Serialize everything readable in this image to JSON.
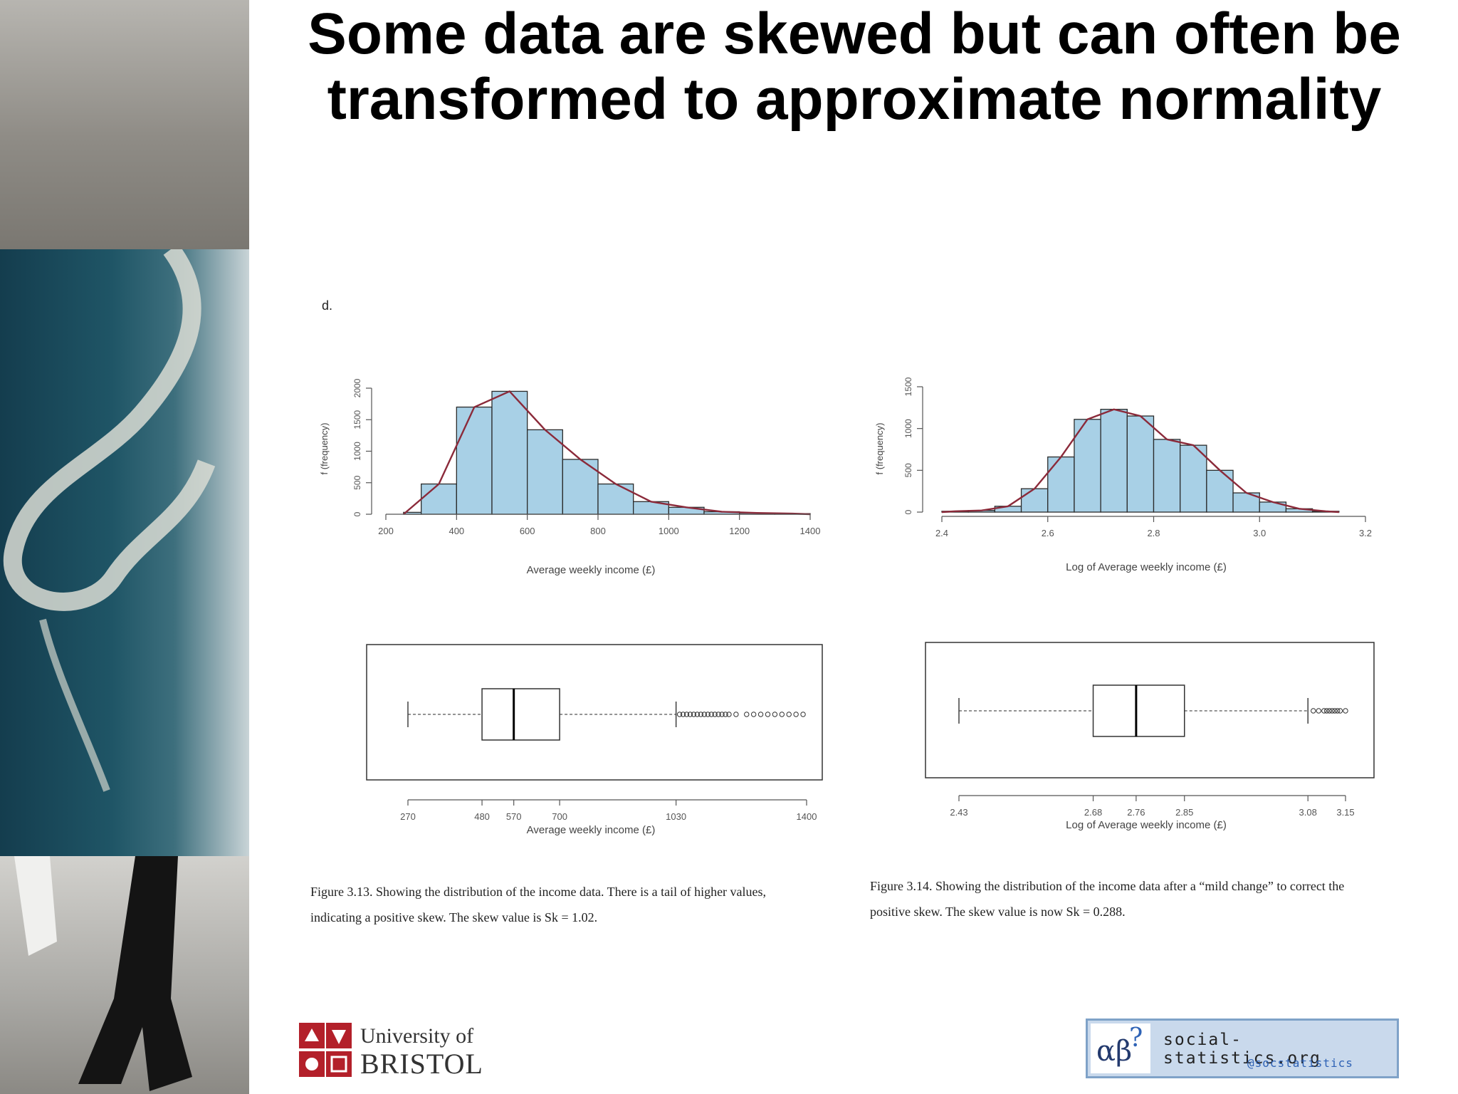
{
  "slide": {
    "title": "Some data are skewed but can often be transformed to approximate normality",
    "panel_label": "d."
  },
  "captions": {
    "fig313": "Figure 3.13. Showing the distribution of the income data. There is a tail of higher values, indicating a positive skew. The skew value is Sk = 1.02.",
    "fig314": "Figure 3.14. Showing the distribution of the income data after a “mild change” to correct the positive skew. The skew value is now Sk = 0.288."
  },
  "logos": {
    "bristol_line1": "University of",
    "bristol_line2": "BRISTOL",
    "ss_glyph": "αβ",
    "ss_question": "?",
    "ss_site": "social-statistics.org",
    "ss_handle": "@socstatistics"
  },
  "colors": {
    "bar_fill": "#a8d0e6",
    "bar_stroke": "#2b2b2b",
    "curve": "#8b2a3a",
    "box_stroke": "#333333"
  },
  "chart_data": [
    {
      "type": "bar",
      "xlabel": "Average weekly income (£)",
      "ylabel": "f (frequency)",
      "xlim": [
        200,
        1400
      ],
      "ylim": [
        0,
        2000
      ],
      "xticks": [
        "200",
        "400",
        "600",
        "800",
        "1000",
        "1200",
        "1400"
      ],
      "yticks": [
        "0",
        "500",
        "1000",
        "1500",
        "2000"
      ],
      "bins": [
        [
          250,
          300
        ],
        [
          300,
          400
        ],
        [
          400,
          500
        ],
        [
          500,
          600
        ],
        [
          600,
          700
        ],
        [
          700,
          800
        ],
        [
          800,
          900
        ],
        [
          900,
          1000
        ],
        [
          1000,
          1100
        ],
        [
          1100,
          1200
        ],
        [
          1200,
          1300
        ],
        [
          1300,
          1400
        ]
      ],
      "values": [
        30,
        480,
        1700,
        1950,
        1340,
        870,
        480,
        200,
        110,
        40,
        20,
        10
      ],
      "curve": [
        [
          250,
          0
        ],
        [
          350,
          480
        ],
        [
          450,
          1700
        ],
        [
          550,
          1950
        ],
        [
          650,
          1340
        ],
        [
          750,
          870
        ],
        [
          850,
          480
        ],
        [
          950,
          200
        ],
        [
          1050,
          110
        ],
        [
          1150,
          40
        ],
        [
          1250,
          20
        ],
        [
          1350,
          10
        ],
        [
          1400,
          0
        ]
      ]
    },
    {
      "type": "bar",
      "xlabel": "Log of Average weekly income (£)",
      "ylabel": "f (frequency)",
      "xlim": [
        2.4,
        3.2
      ],
      "ylim": [
        0,
        1500
      ],
      "xticks": [
        "2.4",
        "2.6",
        "2.8",
        "3.0",
        "3.2"
      ],
      "yticks": [
        "0",
        "500",
        "1000",
        "1500"
      ],
      "bins": [
        [
          2.4,
          2.45
        ],
        [
          2.45,
          2.5
        ],
        [
          2.5,
          2.55
        ],
        [
          2.55,
          2.6
        ],
        [
          2.6,
          2.65
        ],
        [
          2.65,
          2.7
        ],
        [
          2.7,
          2.75
        ],
        [
          2.75,
          2.8
        ],
        [
          2.8,
          2.85
        ],
        [
          2.85,
          2.9
        ],
        [
          2.9,
          2.95
        ],
        [
          2.95,
          3.0
        ],
        [
          3.0,
          3.05
        ],
        [
          3.05,
          3.1
        ],
        [
          3.1,
          3.15
        ]
      ],
      "values": [
        10,
        20,
        70,
        280,
        660,
        1110,
        1230,
        1150,
        870,
        800,
        500,
        230,
        120,
        40,
        10
      ],
      "curve": [
        [
          2.4,
          0
        ],
        [
          2.425,
          10
        ],
        [
          2.475,
          20
        ],
        [
          2.525,
          70
        ],
        [
          2.575,
          280
        ],
        [
          2.625,
          660
        ],
        [
          2.675,
          1110
        ],
        [
          2.725,
          1230
        ],
        [
          2.775,
          1150
        ],
        [
          2.825,
          870
        ],
        [
          2.875,
          800
        ],
        [
          2.925,
          500
        ],
        [
          2.975,
          230
        ],
        [
          3.025,
          120
        ],
        [
          3.075,
          40
        ],
        [
          3.125,
          10
        ],
        [
          3.15,
          0
        ]
      ]
    },
    {
      "type": "box",
      "xlabel": "Average weekly income (£)",
      "xticks": [
        "270",
        "480",
        "570",
        "700",
        "1030",
        "1400"
      ],
      "whisker_low": 270,
      "q1": 480,
      "median": 570,
      "q3": 700,
      "whisker_high": 1030,
      "outliers": [
        1040,
        1050,
        1060,
        1070,
        1080,
        1090,
        1100,
        1110,
        1120,
        1130,
        1140,
        1150,
        1160,
        1170,
        1180,
        1200,
        1230,
        1250,
        1270,
        1290,
        1310,
        1330,
        1350,
        1370,
        1390
      ]
    },
    {
      "type": "box",
      "xlabel": "Log of Average weekly income (£)",
      "xticks": [
        "2.43",
        "2.68",
        "2.76",
        "2.85",
        "3.08",
        "3.15"
      ],
      "whisker_low": 2.43,
      "q1": 2.68,
      "median": 2.76,
      "q3": 2.85,
      "whisker_high": 3.08,
      "outliers": [
        3.09,
        3.1,
        3.11,
        3.115,
        3.12,
        3.125,
        3.13,
        3.135,
        3.14,
        3.15
      ]
    }
  ]
}
